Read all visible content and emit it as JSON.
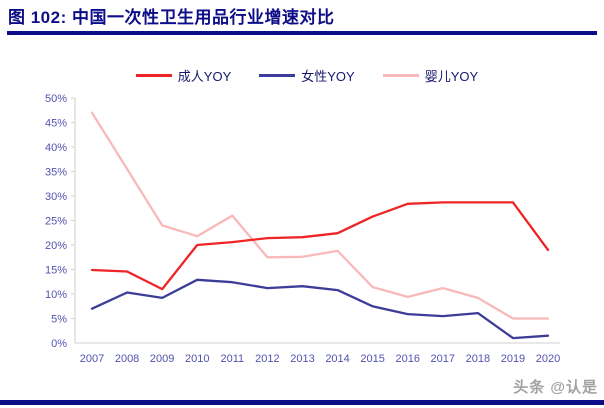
{
  "page": {
    "title": "图 102: 中国一次性卫生用品行业增速对比",
    "watermark": "头条 @认是",
    "accent_color": "#0d0d87",
    "background": "#ffffff"
  },
  "chart_data": {
    "type": "line",
    "title": "中国一次性卫生用品行业增速对比",
    "categories": [
      "2007",
      "2008",
      "2009",
      "2010",
      "2011",
      "2012",
      "2013",
      "2014",
      "2015",
      "2016",
      "2017",
      "2018",
      "2019",
      "2020"
    ],
    "series": [
      {
        "name": "成人YOY",
        "key": "adult-yoy",
        "color": "#ee2426",
        "values": [
          14.9,
          14.6,
          11.0,
          20.0,
          20.6,
          21.4,
          21.6,
          22.4,
          25.8,
          28.4,
          28.7,
          28.7,
          28.7,
          19.0
        ]
      },
      {
        "name": "女性YOY",
        "key": "female-yoy",
        "color": "#3c3c99",
        "values": [
          7.0,
          10.3,
          9.2,
          12.9,
          12.4,
          11.2,
          11.6,
          10.8,
          7.5,
          5.9,
          5.5,
          6.1,
          1.0,
          1.5
        ]
      },
      {
        "name": "婴儿YOY",
        "key": "baby-yoy",
        "color": "#f9b9bb",
        "values": [
          47.0,
          35.5,
          24.0,
          21.8,
          26.0,
          17.5,
          17.6,
          18.8,
          11.4,
          9.4,
          11.2,
          9.2,
          5.0,
          5.0
        ]
      }
    ],
    "xlabel": "",
    "ylabel": "",
    "ylim": [
      0,
      50
    ],
    "ytick_step": 5,
    "ytick_labels": [
      "0%",
      "5%",
      "10%",
      "15%",
      "20%",
      "25%",
      "30%",
      "35%",
      "40%",
      "45%",
      "50%"
    ],
    "grid": false,
    "legend_position": "top",
    "axis_color": "#d9d9d9",
    "tick_label_color": "#5252b0"
  }
}
